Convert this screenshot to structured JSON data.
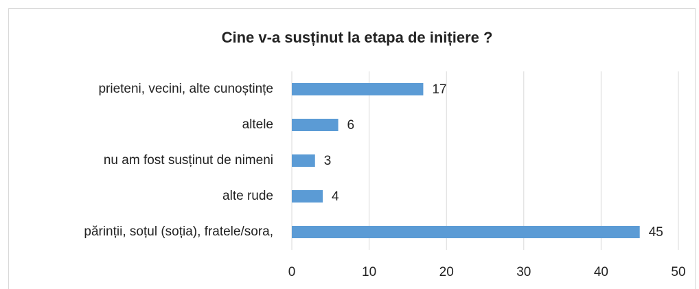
{
  "chart_data": {
    "type": "barh",
    "title": "Cine v-a susținut la etapa de inițiere ?",
    "categories": [
      "prieteni, vecini, alte cunoștințe",
      "altele",
      "nu am fost susținut de nimeni",
      "alte rude",
      "părinții, soțul (soția), fratele/sora,"
    ],
    "values": [
      17,
      6,
      3,
      4,
      45
    ],
    "color": "#5b9bd5",
    "xlim": [
      0,
      50
    ],
    "xticks": [
      0,
      10,
      20,
      30,
      40,
      50
    ],
    "grid": true
  }
}
